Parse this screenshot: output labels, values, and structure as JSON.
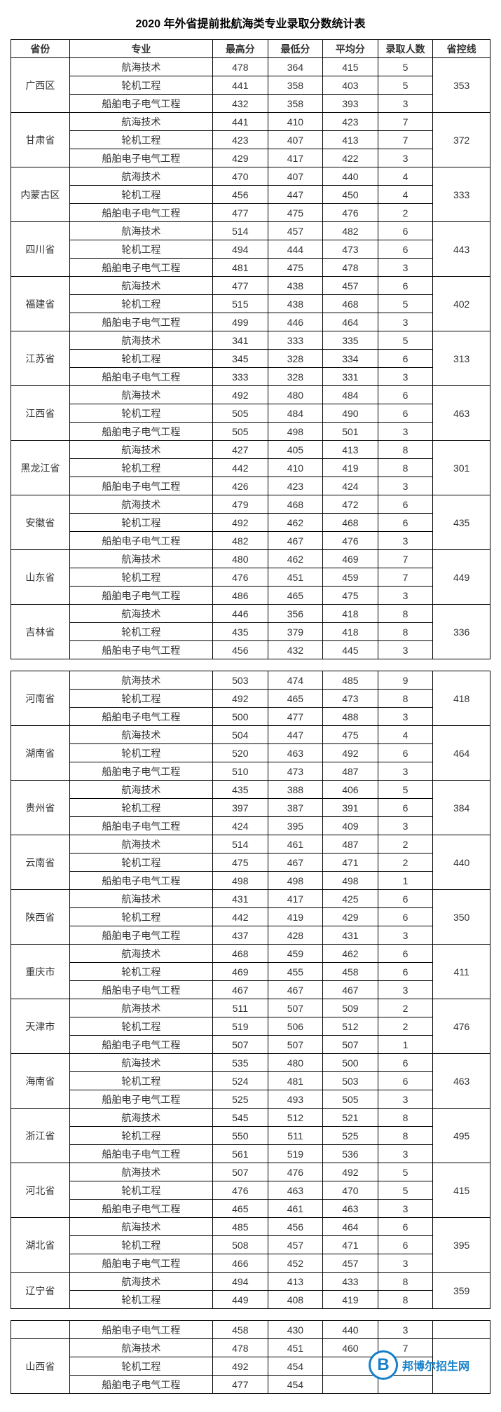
{
  "title": "2020 年外省提前批航海类专业录取分数统计表",
  "columns": [
    "省份",
    "专业",
    "最高分",
    "最低分",
    "平均分",
    "录取人数",
    "省控线"
  ],
  "col_classes": [
    "col-prov",
    "col-major",
    "col-num",
    "col-num",
    "col-num",
    "col-num",
    "col-line"
  ],
  "blocks": [
    {
      "groups": [
        {
          "province": "广西区",
          "line": "353",
          "rows": [
            {
              "major": "航海技术",
              "hi": "478",
              "lo": "364",
              "avg": "415",
              "cnt": "5"
            },
            {
              "major": "轮机工程",
              "hi": "441",
              "lo": "358",
              "avg": "403",
              "cnt": "5"
            },
            {
              "major": "船舶电子电气工程",
              "hi": "432",
              "lo": "358",
              "avg": "393",
              "cnt": "3"
            }
          ]
        },
        {
          "province": "甘肃省",
          "line": "372",
          "rows": [
            {
              "major": "航海技术",
              "hi": "441",
              "lo": "410",
              "avg": "423",
              "cnt": "7"
            },
            {
              "major": "轮机工程",
              "hi": "423",
              "lo": "407",
              "avg": "413",
              "cnt": "7"
            },
            {
              "major": "船舶电子电气工程",
              "hi": "429",
              "lo": "417",
              "avg": "422",
              "cnt": "3"
            }
          ]
        },
        {
          "province": "内蒙古区",
          "line": "333",
          "rows": [
            {
              "major": "航海技术",
              "hi": "470",
              "lo": "407",
              "avg": "440",
              "cnt": "4"
            },
            {
              "major": "轮机工程",
              "hi": "456",
              "lo": "447",
              "avg": "450",
              "cnt": "4"
            },
            {
              "major": "船舶电子电气工程",
              "hi": "477",
              "lo": "475",
              "avg": "476",
              "cnt": "2"
            }
          ]
        },
        {
          "province": "四川省",
          "line": "443",
          "rows": [
            {
              "major": "航海技术",
              "hi": "514",
              "lo": "457",
              "avg": "482",
              "cnt": "6"
            },
            {
              "major": "轮机工程",
              "hi": "494",
              "lo": "444",
              "avg": "473",
              "cnt": "6"
            },
            {
              "major": "船舶电子电气工程",
              "hi": "481",
              "lo": "475",
              "avg": "478",
              "cnt": "3"
            }
          ]
        },
        {
          "province": "福建省",
          "line": "402",
          "rows": [
            {
              "major": "航海技术",
              "hi": "477",
              "lo": "438",
              "avg": "457",
              "cnt": "6"
            },
            {
              "major": "轮机工程",
              "hi": "515",
              "lo": "438",
              "avg": "468",
              "cnt": "5"
            },
            {
              "major": "船舶电子电气工程",
              "hi": "499",
              "lo": "446",
              "avg": "464",
              "cnt": "3"
            }
          ]
        },
        {
          "province": "江苏省",
          "line": "313",
          "rows": [
            {
              "major": "航海技术",
              "hi": "341",
              "lo": "333",
              "avg": "335",
              "cnt": "5"
            },
            {
              "major": "轮机工程",
              "hi": "345",
              "lo": "328",
              "avg": "334",
              "cnt": "6"
            },
            {
              "major": "船舶电子电气工程",
              "hi": "333",
              "lo": "328",
              "avg": "331",
              "cnt": "3"
            }
          ]
        },
        {
          "province": "江西省",
          "line": "463",
          "rows": [
            {
              "major": "航海技术",
              "hi": "492",
              "lo": "480",
              "avg": "484",
              "cnt": "6"
            },
            {
              "major": "轮机工程",
              "hi": "505",
              "lo": "484",
              "avg": "490",
              "cnt": "6"
            },
            {
              "major": "船舶电子电气工程",
              "hi": "505",
              "lo": "498",
              "avg": "501",
              "cnt": "3"
            }
          ]
        },
        {
          "province": "黑龙江省",
          "line": "301",
          "rows": [
            {
              "major": "航海技术",
              "hi": "427",
              "lo": "405",
              "avg": "413",
              "cnt": "8"
            },
            {
              "major": "轮机工程",
              "hi": "442",
              "lo": "410",
              "avg": "419",
              "cnt": "8"
            },
            {
              "major": "船舶电子电气工程",
              "hi": "426",
              "lo": "423",
              "avg": "424",
              "cnt": "3"
            }
          ]
        },
        {
          "province": "安徽省",
          "line": "435",
          "rows": [
            {
              "major": "航海技术",
              "hi": "479",
              "lo": "468",
              "avg": "472",
              "cnt": "6"
            },
            {
              "major": "轮机工程",
              "hi": "492",
              "lo": "462",
              "avg": "468",
              "cnt": "6"
            },
            {
              "major": "船舶电子电气工程",
              "hi": "482",
              "lo": "467",
              "avg": "476",
              "cnt": "3"
            }
          ]
        },
        {
          "province": "山东省",
          "line": "449",
          "rows": [
            {
              "major": "航海技术",
              "hi": "480",
              "lo": "462",
              "avg": "469",
              "cnt": "7"
            },
            {
              "major": "轮机工程",
              "hi": "476",
              "lo": "451",
              "avg": "459",
              "cnt": "7"
            },
            {
              "major": "船舶电子电气工程",
              "hi": "486",
              "lo": "465",
              "avg": "475",
              "cnt": "3"
            }
          ]
        },
        {
          "province": "吉林省",
          "line": "336",
          "rows": [
            {
              "major": "航海技术",
              "hi": "446",
              "lo": "356",
              "avg": "418",
              "cnt": "8"
            },
            {
              "major": "轮机工程",
              "hi": "435",
              "lo": "379",
              "avg": "418",
              "cnt": "8"
            },
            {
              "major": "船舶电子电气工程",
              "hi": "456",
              "lo": "432",
              "avg": "445",
              "cnt": "3"
            }
          ]
        }
      ]
    },
    {
      "groups": [
        {
          "province": "河南省",
          "line": "418",
          "rows": [
            {
              "major": "航海技术",
              "hi": "503",
              "lo": "474",
              "avg": "485",
              "cnt": "9"
            },
            {
              "major": "轮机工程",
              "hi": "492",
              "lo": "465",
              "avg": "473",
              "cnt": "8"
            },
            {
              "major": "船舶电子电气工程",
              "hi": "500",
              "lo": "477",
              "avg": "488",
              "cnt": "3"
            }
          ]
        },
        {
          "province": "湖南省",
          "line": "464",
          "rows": [
            {
              "major": "航海技术",
              "hi": "504",
              "lo": "447",
              "avg": "475",
              "cnt": "4"
            },
            {
              "major": "轮机工程",
              "hi": "520",
              "lo": "463",
              "avg": "492",
              "cnt": "6"
            },
            {
              "major": "船舶电子电气工程",
              "hi": "510",
              "lo": "473",
              "avg": "487",
              "cnt": "3"
            }
          ]
        },
        {
          "province": "贵州省",
          "line": "384",
          "rows": [
            {
              "major": "航海技术",
              "hi": "435",
              "lo": "388",
              "avg": "406",
              "cnt": "5"
            },
            {
              "major": "轮机工程",
              "hi": "397",
              "lo": "387",
              "avg": "391",
              "cnt": "6"
            },
            {
              "major": "船舶电子电气工程",
              "hi": "424",
              "lo": "395",
              "avg": "409",
              "cnt": "3"
            }
          ]
        },
        {
          "province": "云南省",
          "line": "440",
          "rows": [
            {
              "major": "航海技术",
              "hi": "514",
              "lo": "461",
              "avg": "487",
              "cnt": "2"
            },
            {
              "major": "轮机工程",
              "hi": "475",
              "lo": "467",
              "avg": "471",
              "cnt": "2"
            },
            {
              "major": "船舶电子电气工程",
              "hi": "498",
              "lo": "498",
              "avg": "498",
              "cnt": "1"
            }
          ]
        },
        {
          "province": "陕西省",
          "line": "350",
          "rows": [
            {
              "major": "航海技术",
              "hi": "431",
              "lo": "417",
              "avg": "425",
              "cnt": "6"
            },
            {
              "major": "轮机工程",
              "hi": "442",
              "lo": "419",
              "avg": "429",
              "cnt": "6"
            },
            {
              "major": "船舶电子电气工程",
              "hi": "437",
              "lo": "428",
              "avg": "431",
              "cnt": "3"
            }
          ]
        },
        {
          "province": "重庆市",
          "line": "411",
          "rows": [
            {
              "major": "航海技术",
              "hi": "468",
              "lo": "459",
              "avg": "462",
              "cnt": "6"
            },
            {
              "major": "轮机工程",
              "hi": "469",
              "lo": "455",
              "avg": "458",
              "cnt": "6"
            },
            {
              "major": "船舶电子电气工程",
              "hi": "467",
              "lo": "467",
              "avg": "467",
              "cnt": "3"
            }
          ]
        },
        {
          "province": "天津市",
          "line": "476",
          "rows": [
            {
              "major": "航海技术",
              "hi": "511",
              "lo": "507",
              "avg": "509",
              "cnt": "2"
            },
            {
              "major": "轮机工程",
              "hi": "519",
              "lo": "506",
              "avg": "512",
              "cnt": "2"
            },
            {
              "major": "船舶电子电气工程",
              "hi": "507",
              "lo": "507",
              "avg": "507",
              "cnt": "1"
            }
          ]
        },
        {
          "province": "海南省",
          "line": "463",
          "rows": [
            {
              "major": "航海技术",
              "hi": "535",
              "lo": "480",
              "avg": "500",
              "cnt": "6"
            },
            {
              "major": "轮机工程",
              "hi": "524",
              "lo": "481",
              "avg": "503",
              "cnt": "6"
            },
            {
              "major": "船舶电子电气工程",
              "hi": "525",
              "lo": "493",
              "avg": "505",
              "cnt": "3"
            }
          ]
        },
        {
          "province": "浙江省",
          "line": "495",
          "rows": [
            {
              "major": "航海技术",
              "hi": "545",
              "lo": "512",
              "avg": "521",
              "cnt": "8"
            },
            {
              "major": "轮机工程",
              "hi": "550",
              "lo": "511",
              "avg": "525",
              "cnt": "8"
            },
            {
              "major": "船舶电子电气工程",
              "hi": "561",
              "lo": "519",
              "avg": "536",
              "cnt": "3"
            }
          ]
        },
        {
          "province": "河北省",
          "line": "415",
          "rows": [
            {
              "major": "航海技术",
              "hi": "507",
              "lo": "476",
              "avg": "492",
              "cnt": "5"
            },
            {
              "major": "轮机工程",
              "hi": "476",
              "lo": "463",
              "avg": "470",
              "cnt": "5"
            },
            {
              "major": "船舶电子电气工程",
              "hi": "465",
              "lo": "461",
              "avg": "463",
              "cnt": "3"
            }
          ]
        },
        {
          "province": "湖北省",
          "line": "395",
          "rows": [
            {
              "major": "航海技术",
              "hi": "485",
              "lo": "456",
              "avg": "464",
              "cnt": "6"
            },
            {
              "major": "轮机工程",
              "hi": "508",
              "lo": "457",
              "avg": "471",
              "cnt": "6"
            },
            {
              "major": "船舶电子电气工程",
              "hi": "466",
              "lo": "452",
              "avg": "457",
              "cnt": "3"
            }
          ]
        },
        {
          "province": "辽宁省",
          "line": "359",
          "rows": [
            {
              "major": "航海技术",
              "hi": "494",
              "lo": "413",
              "avg": "433",
              "cnt": "8"
            },
            {
              "major": "轮机工程",
              "hi": "449",
              "lo": "408",
              "avg": "419",
              "cnt": "8"
            }
          ]
        }
      ]
    },
    {
      "groups": [
        {
          "province": "",
          "line": "",
          "rows": [
            {
              "major": "船舶电子电气工程",
              "hi": "458",
              "lo": "430",
              "avg": "440",
              "cnt": "3"
            }
          ]
        },
        {
          "province": "山西省",
          "line": "",
          "rows": [
            {
              "major": "航海技术",
              "hi": "478",
              "lo": "451",
              "avg": "460",
              "cnt": "7"
            },
            {
              "major": "轮机工程",
              "hi": "492",
              "lo": "454",
              "avg": "",
              "cnt": ""
            },
            {
              "major": "船舶电子电气工程",
              "hi": "477",
              "lo": "454",
              "avg": "",
              "cnt": ""
            }
          ]
        }
      ]
    }
  ],
  "watermark": {
    "letter": "B",
    "text": "邦博尔招生网",
    "color": "#0a7bc8"
  },
  "colors": {
    "border": "#000000",
    "text": "#333333",
    "bg": "#ffffff"
  }
}
